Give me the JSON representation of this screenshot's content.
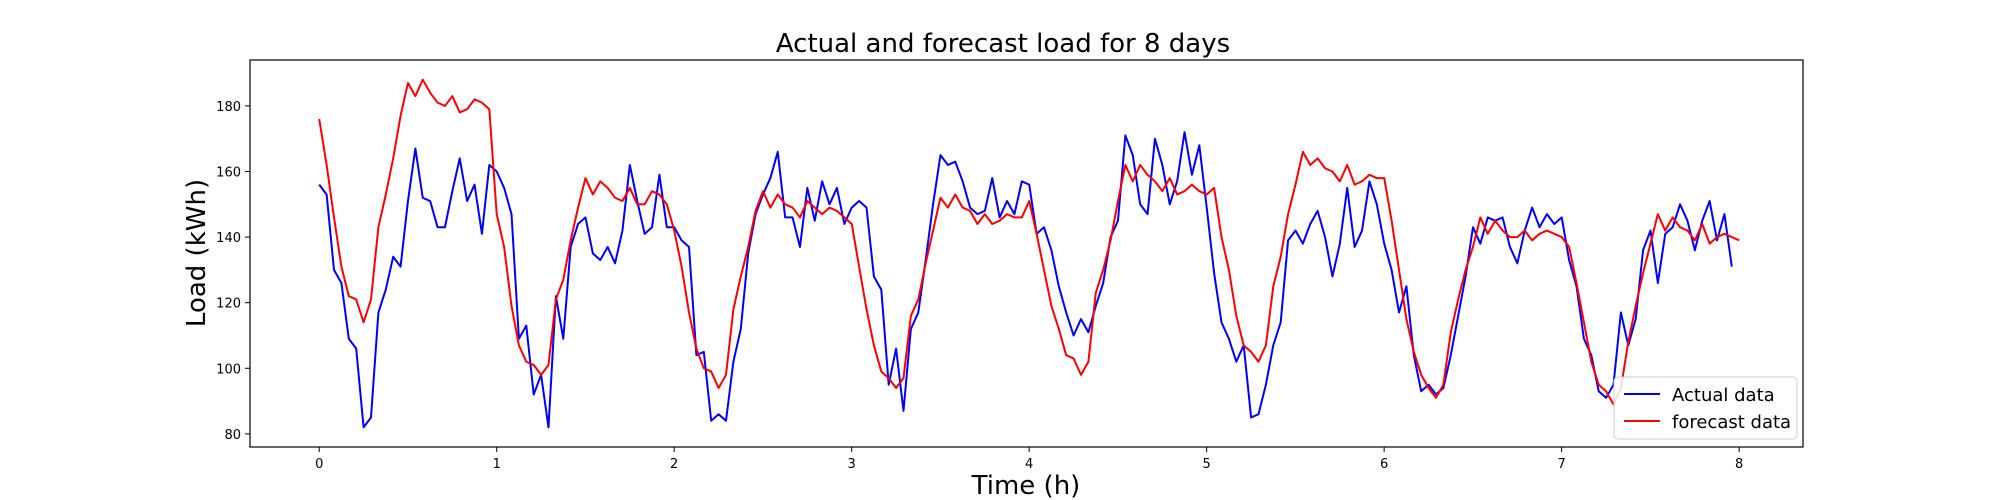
{
  "chart_data": {
    "type": "line",
    "title": "Actual and forecast load for 8 days",
    "xlabel": "Time (h)",
    "ylabel": "Load (kWh)",
    "xlim": [
      -0.39,
      8.36
    ],
    "ylim": [
      76,
      194
    ],
    "xticks": [
      0,
      1,
      2,
      3,
      4,
      5,
      6,
      7,
      8
    ],
    "yticks": [
      80,
      100,
      120,
      140,
      160,
      180
    ],
    "grid": false,
    "legend_position": "lower-right",
    "x_step": 0.04167,
    "series": [
      {
        "name": "Actual data",
        "color": "#0000ff",
        "values": [
          156,
          153,
          130,
          126,
          109,
          106,
          82,
          85,
          117,
          124,
          134,
          131,
          151,
          167,
          152,
          151,
          143,
          143,
          154,
          164,
          151,
          156,
          141,
          162,
          160,
          155,
          147,
          109,
          113,
          92,
          98,
          82,
          122,
          109,
          137,
          144,
          146,
          135,
          133,
          137,
          132,
          142,
          162,
          151,
          141,
          143,
          159,
          143,
          143,
          139,
          137,
          104,
          105,
          84,
          86,
          84,
          102,
          112,
          135,
          147,
          153,
          158,
          166,
          146,
          146,
          137,
          155,
          145,
          157,
          150,
          155,
          144,
          149,
          151,
          149,
          128,
          124,
          95,
          106,
          87,
          112,
          117,
          133,
          150,
          165,
          162,
          163,
          157,
          149,
          147,
          148,
          158,
          146,
          151,
          147,
          157,
          156,
          141,
          143,
          136,
          125,
          117,
          110,
          115,
          111,
          119,
          126,
          140,
          145,
          171,
          165,
          150,
          147,
          170,
          162,
          150,
          157,
          172,
          159,
          168,
          149,
          129,
          114,
          109,
          102,
          107,
          85,
          86,
          95,
          107,
          114,
          139,
          142,
          138,
          144,
          148,
          140,
          128,
          138,
          155,
          137,
          142,
          157,
          150,
          138,
          130,
          117,
          125,
          104,
          93,
          95,
          92,
          94,
          104,
          116,
          128,
          143,
          138,
          146,
          145,
          146,
          137,
          132,
          142,
          149,
          143,
          147,
          144,
          146,
          133,
          125,
          109,
          104,
          93,
          91,
          95,
          117,
          107,
          115,
          136,
          142,
          126,
          141,
          143,
          150,
          145,
          136,
          145,
          151,
          139,
          147,
          131
        ]
      },
      {
        "name": "forecast data",
        "color": "#ff0000",
        "values": [
          176,
          162,
          146,
          131,
          122,
          121,
          114,
          121,
          143,
          153,
          164,
          177,
          187,
          183,
          188,
          184,
          181,
          180,
          183,
          178,
          179,
          182,
          181,
          179,
          147,
          137,
          119,
          107,
          102,
          101,
          98,
          101,
          121,
          127,
          139,
          149,
          158,
          153,
          157,
          155,
          152,
          151,
          155,
          150,
          150,
          154,
          153,
          150,
          142,
          131,
          117,
          106,
          100,
          99,
          94,
          98,
          118,
          128,
          137,
          148,
          154,
          149,
          153,
          150,
          149,
          146,
          151,
          149,
          147,
          149,
          148,
          146,
          144,
          131,
          118,
          107,
          99,
          97,
          94,
          97,
          116,
          121,
          132,
          142,
          152,
          149,
          153,
          149,
          148,
          144,
          147,
          144,
          145,
          147,
          146,
          146,
          151,
          141,
          130,
          119,
          112,
          104,
          103,
          98,
          102,
          123,
          130,
          139,
          151,
          162,
          157,
          162,
          159,
          157,
          154,
          158,
          153,
          154,
          156,
          154,
          153,
          155,
          140,
          130,
          116,
          107,
          105,
          102,
          107,
          125,
          134,
          147,
          156,
          166,
          162,
          164,
          161,
          160,
          157,
          162,
          156,
          157,
          159,
          158,
          158,
          145,
          130,
          115,
          105,
          98,
          94,
          91,
          95,
          111,
          121,
          130,
          137,
          146,
          141,
          145,
          142,
          140,
          140,
          142,
          139,
          141,
          142,
          141,
          140,
          137,
          126,
          114,
          102,
          95,
          93,
          89,
          94,
          108,
          119,
          129,
          138,
          147,
          142,
          146,
          143,
          142,
          139,
          144,
          138,
          140,
          141,
          140,
          139
        ]
      }
    ]
  }
}
